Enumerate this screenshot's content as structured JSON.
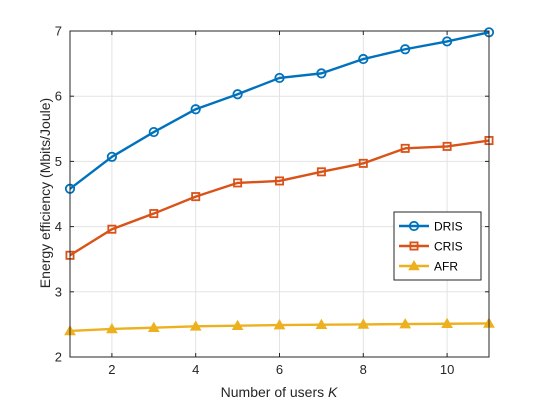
{
  "chart_data": {
    "type": "line",
    "title": "",
    "xlabel": "Number of users  ",
    "xlabel_var": "K",
    "ylabel": "Energy efficiency (Mbits/Joule)",
    "xlim": [
      1,
      11
    ],
    "ylim": [
      2,
      7
    ],
    "xticks": [
      2,
      4,
      6,
      8,
      10
    ],
    "yticks": [
      2,
      3,
      4,
      5,
      6,
      7
    ],
    "grid": true,
    "legend_position": "right",
    "x": [
      1,
      2,
      3,
      4,
      5,
      6,
      7,
      8,
      9,
      10,
      11
    ],
    "series": [
      {
        "name": "DRIS",
        "color": "#0072BD",
        "marker": "circle",
        "values": [
          4.58,
          5.07,
          5.45,
          5.8,
          6.03,
          6.28,
          6.35,
          6.57,
          6.72,
          6.84,
          6.98
        ]
      },
      {
        "name": "CRIS",
        "color": "#D95319",
        "marker": "square",
        "values": [
          3.56,
          3.96,
          4.2,
          4.46,
          4.67,
          4.7,
          4.84,
          4.97,
          5.2,
          5.23,
          5.32
        ]
      },
      {
        "name": "AFR",
        "color": "#EDB120",
        "marker": "triangle",
        "values": [
          2.4,
          2.43,
          2.45,
          2.47,
          2.48,
          2.49,
          2.495,
          2.5,
          2.505,
          2.51,
          2.515
        ]
      }
    ]
  }
}
